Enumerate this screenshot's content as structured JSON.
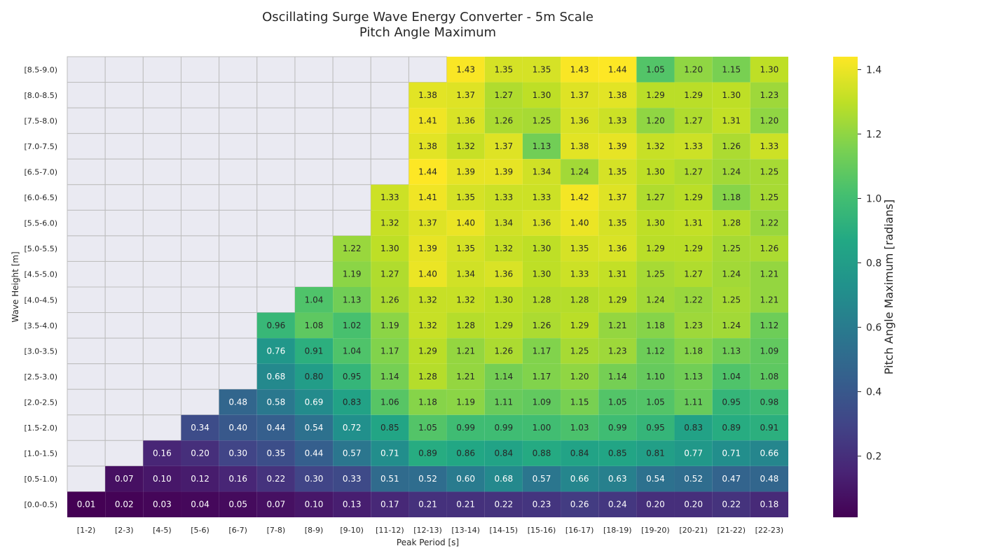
{
  "chart_data": {
    "type": "heatmap",
    "title_line1": "Oscillating Surge Wave Energy Converter - 5m Scale",
    "title_line2": "Pitch Angle Maximum",
    "xlabel": "Peak Period [s]",
    "ylabel": "Wave Height [m]",
    "colorbar_label": "Pitch Angle Maximum [radians]",
    "colormap": "viridis",
    "vmin": 0.01,
    "vmax": 1.44,
    "colorbar_ticks": [
      0.2,
      0.4,
      0.6,
      0.8,
      1.0,
      1.2,
      1.4
    ],
    "colorbar_tick_labels": [
      "0.2",
      "0.4",
      "0.6",
      "0.8",
      "1.0",
      "1.2",
      "1.4"
    ],
    "missing_color": "#eaeaf2",
    "x_categories": [
      "[1-2)",
      "[2-3)",
      "[4-5)",
      "[5-6)",
      "[6-7)",
      "[7-8)",
      "[8-9)",
      "[9-10)",
      "[11-12)",
      "[12-13)",
      "[13-14)",
      "[14-15)",
      "[15-16)",
      "[16-17)",
      "[18-19)",
      "[19-20)",
      "[20-21)",
      "[21-22)",
      "[22-23)"
    ],
    "y_categories": [
      "[8.5-9.0)",
      "[8.0-8.5)",
      "[7.5-8.0)",
      "[7.0-7.5)",
      "[6.5-7.0)",
      "[6.0-6.5)",
      "[5.5-6.0)",
      "[5.0-5.5)",
      "[4.5-5.0)",
      "[4.0-4.5)",
      "[3.5-4.0)",
      "[3.0-3.5)",
      "[2.5-3.0)",
      "[2.0-2.5)",
      "[1.5-2.0)",
      "[1.0-1.5)",
      "[0.5-1.0)",
      "[0.0-0.5)"
    ],
    "values": [
      [
        null,
        null,
        null,
        null,
        null,
        null,
        null,
        null,
        null,
        null,
        1.43,
        1.35,
        1.35,
        1.43,
        1.44,
        1.05,
        1.2,
        1.15,
        1.3
      ],
      [
        null,
        null,
        null,
        null,
        null,
        null,
        null,
        null,
        null,
        1.38,
        1.37,
        1.27,
        1.3,
        1.37,
        1.38,
        1.29,
        1.29,
        1.3,
        1.23
      ],
      [
        null,
        null,
        null,
        null,
        null,
        null,
        null,
        null,
        null,
        1.41,
        1.36,
        1.26,
        1.25,
        1.36,
        1.33,
        1.2,
        1.27,
        1.31,
        1.2
      ],
      [
        null,
        null,
        null,
        null,
        null,
        null,
        null,
        null,
        null,
        1.38,
        1.32,
        1.37,
        1.13,
        1.38,
        1.39,
        1.32,
        1.33,
        1.26,
        1.33
      ],
      [
        null,
        null,
        null,
        null,
        null,
        null,
        null,
        null,
        null,
        1.44,
        1.39,
        1.39,
        1.34,
        1.24,
        1.35,
        1.3,
        1.27,
        1.24,
        1.25
      ],
      [
        null,
        null,
        null,
        null,
        null,
        null,
        null,
        null,
        1.33,
        1.41,
        1.35,
        1.33,
        1.33,
        1.42,
        1.37,
        1.27,
        1.29,
        1.18,
        1.25
      ],
      [
        null,
        null,
        null,
        null,
        null,
        null,
        null,
        null,
        1.32,
        1.37,
        1.4,
        1.34,
        1.36,
        1.4,
        1.35,
        1.3,
        1.31,
        1.28,
        1.22
      ],
      [
        null,
        null,
        null,
        null,
        null,
        null,
        null,
        1.22,
        1.3,
        1.39,
        1.35,
        1.32,
        1.3,
        1.35,
        1.36,
        1.29,
        1.29,
        1.25,
        1.26
      ],
      [
        null,
        null,
        null,
        null,
        null,
        null,
        null,
        1.19,
        1.27,
        1.4,
        1.34,
        1.36,
        1.3,
        1.33,
        1.31,
        1.25,
        1.27,
        1.24,
        1.21
      ],
      [
        null,
        null,
        null,
        null,
        null,
        null,
        1.04,
        1.13,
        1.26,
        1.32,
        1.32,
        1.3,
        1.28,
        1.28,
        1.29,
        1.24,
        1.22,
        1.25,
        1.21
      ],
      [
        null,
        null,
        null,
        null,
        null,
        0.96,
        1.08,
        1.02,
        1.19,
        1.32,
        1.28,
        1.29,
        1.26,
        1.29,
        1.21,
        1.18,
        1.23,
        1.24,
        1.12
      ],
      [
        null,
        null,
        null,
        null,
        null,
        0.76,
        0.91,
        1.04,
        1.17,
        1.29,
        1.21,
        1.26,
        1.17,
        1.25,
        1.23,
        1.12,
        1.18,
        1.13,
        1.09
      ],
      [
        null,
        null,
        null,
        null,
        null,
        0.68,
        0.8,
        0.95,
        1.14,
        1.28,
        1.21,
        1.14,
        1.17,
        1.2,
        1.14,
        1.1,
        1.13,
        1.04,
        1.08
      ],
      [
        null,
        null,
        null,
        null,
        0.48,
        0.58,
        0.69,
        0.83,
        1.06,
        1.18,
        1.19,
        1.11,
        1.09,
        1.15,
        1.05,
        1.05,
        1.11,
        0.95,
        0.98
      ],
      [
        null,
        null,
        null,
        0.34,
        0.4,
        0.44,
        0.54,
        0.72,
        0.85,
        1.05,
        0.99,
        0.99,
        1.0,
        1.03,
        0.99,
        0.95,
        0.83,
        0.89,
        0.91
      ],
      [
        null,
        null,
        0.16,
        0.2,
        0.3,
        0.35,
        0.44,
        0.57,
        0.71,
        0.89,
        0.86,
        0.84,
        0.88,
        0.84,
        0.85,
        0.81,
        0.77,
        0.71,
        0.66
      ],
      [
        null,
        0.07,
        0.1,
        0.12,
        0.16,
        0.22,
        0.3,
        0.33,
        0.51,
        0.52,
        0.6,
        0.68,
        0.57,
        0.66,
        0.63,
        0.54,
        0.52,
        0.47,
        0.48
      ],
      [
        0.01,
        0.02,
        0.03,
        0.04,
        0.05,
        0.07,
        0.1,
        0.13,
        0.17,
        0.21,
        0.21,
        0.22,
        0.23,
        0.26,
        0.24,
        0.2,
        0.2,
        0.22,
        0.18
      ]
    ]
  }
}
